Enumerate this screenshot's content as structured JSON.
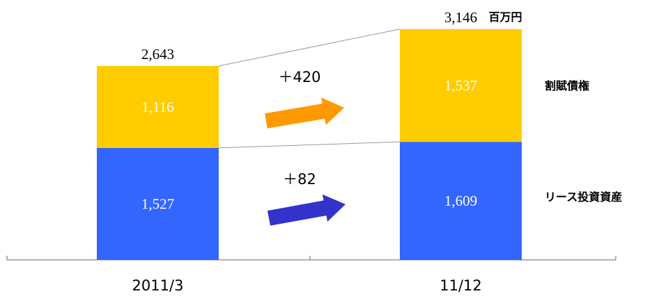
{
  "chart_data": {
    "type": "bar",
    "stacked": true,
    "categories": [
      "2011/3",
      "11/12"
    ],
    "unit": "百万円",
    "series": [
      {
        "name": "リース投資資産",
        "values": [
          1527,
          1609
        ],
        "color": "#3366FF"
      },
      {
        "name": "割賦債権",
        "values": [
          1116,
          1537
        ],
        "color": "#FFCC00"
      }
    ],
    "totals": [
      "2,643",
      "3,146"
    ],
    "value_labels": [
      [
        "1,527",
        "1,609"
      ],
      [
        "1,116",
        "1,537"
      ]
    ],
    "changes": [
      {
        "label": "＋82",
        "series": "リース投資資産",
        "color": "#3333CC"
      },
      {
        "label": "＋420",
        "series": "割賦債権",
        "color": "#FF9900"
      }
    ],
    "legend_position": "right",
    "grid": false
  }
}
